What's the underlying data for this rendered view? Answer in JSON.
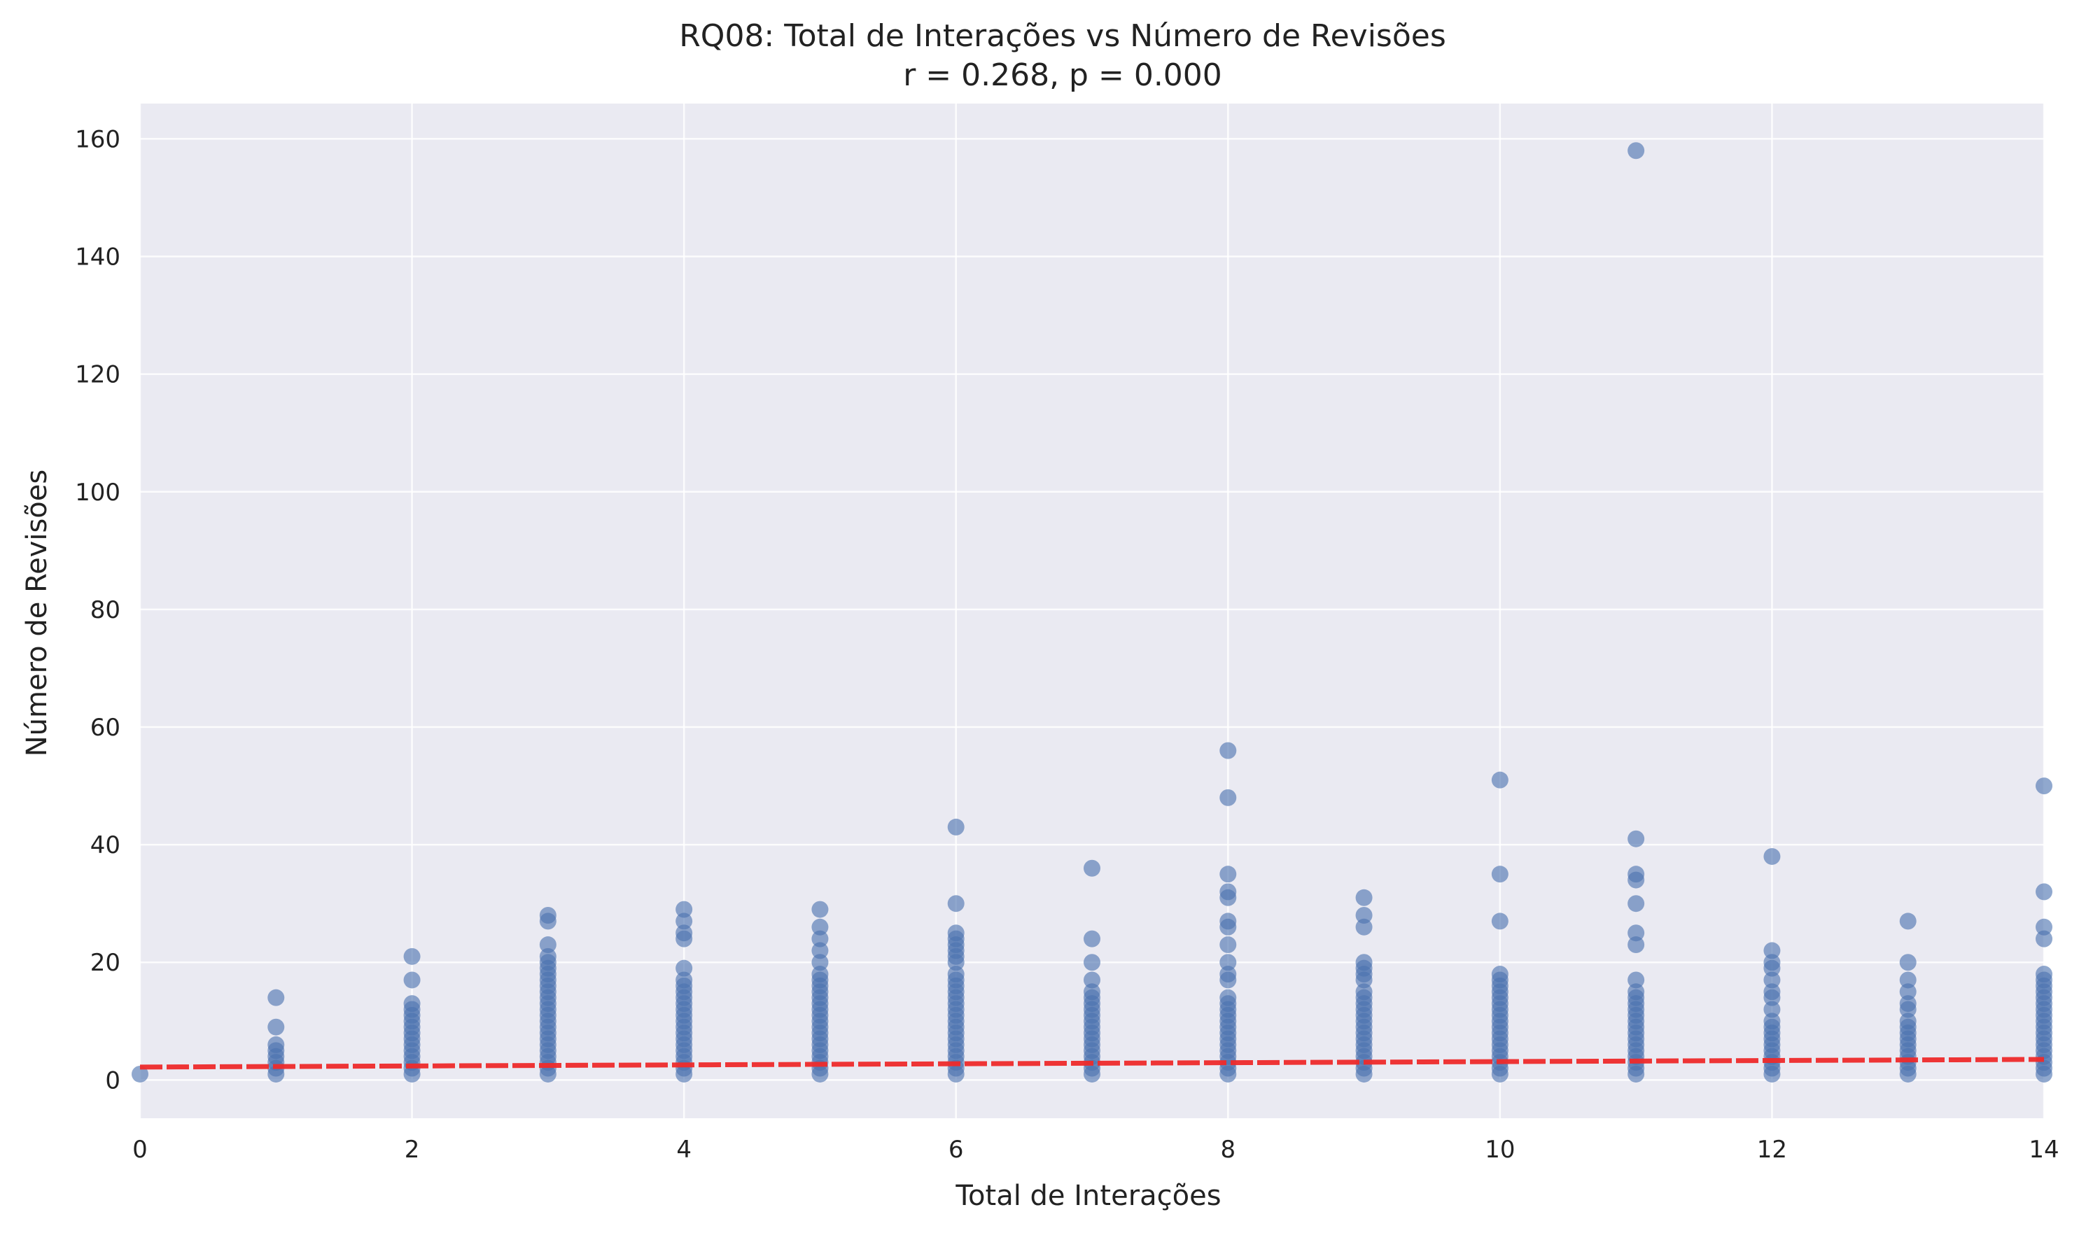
{
  "chart_data": {
    "type": "scatter",
    "title": "RQ08: Total de Interações vs Número de Revisões",
    "subtitle": "r = 0.268, p = 0.000",
    "xlabel": "Total de Interações",
    "ylabel": "Número de Revisões",
    "xlim": [
      0,
      14
    ],
    "ylim": [
      -6.5,
      166
    ],
    "x_ticks": [
      0,
      2,
      4,
      6,
      8,
      10,
      12,
      14
    ],
    "y_ticks": [
      0,
      20,
      40,
      60,
      80,
      100,
      120,
      140,
      160
    ],
    "grid": true,
    "legend": "none",
    "colors": {
      "background": "#eaeaf2",
      "grid": "#ffffff",
      "points": "#4c72b0",
      "trend": "#ee2a2a"
    },
    "trend_line": {
      "style": "dashed",
      "x": [
        0,
        14
      ],
      "y": [
        2.2,
        3.5
      ]
    },
    "series": [
      {
        "groups": [
          {
            "x": 0,
            "y": [
              1
            ]
          },
          {
            "x": 1,
            "y": [
              1,
              2,
              3,
              4,
              5,
              6,
              9,
              14
            ]
          },
          {
            "x": 2,
            "y": [
              1,
              2,
              3,
              4,
              5,
              6,
              7,
              8,
              9,
              10,
              11,
              12,
              13,
              17,
              21
            ]
          },
          {
            "x": 3,
            "y": [
              1,
              2,
              3,
              4,
              5,
              6,
              7,
              8,
              9,
              10,
              11,
              12,
              13,
              14,
              15,
              16,
              17,
              18,
              19,
              20,
              21,
              23,
              27,
              28
            ]
          },
          {
            "x": 4,
            "y": [
              1,
              2,
              3,
              4,
              5,
              6,
              7,
              8,
              9,
              10,
              11,
              12,
              13,
              14,
              15,
              16,
              17,
              19,
              24,
              25,
              27,
              29
            ]
          },
          {
            "x": 5,
            "y": [
              1,
              2,
              3,
              4,
              5,
              6,
              7,
              8,
              9,
              10,
              11,
              12,
              13,
              14,
              15,
              16,
              17,
              18,
              20,
              22,
              24,
              26,
              29
            ]
          },
          {
            "x": 6,
            "y": [
              1,
              2,
              3,
              4,
              5,
              6,
              7,
              8,
              9,
              10,
              11,
              12,
              13,
              14,
              15,
              16,
              17,
              18,
              20,
              21,
              22,
              23,
              24,
              25,
              30,
              43
            ]
          },
          {
            "x": 7,
            "y": [
              1,
              2,
              3,
              4,
              5,
              6,
              7,
              8,
              9,
              10,
              11,
              12,
              13,
              14,
              15,
              17,
              20,
              24,
              36
            ]
          },
          {
            "x": 8,
            "y": [
              1,
              2,
              3,
              4,
              5,
              6,
              7,
              8,
              9,
              10,
              11,
              12,
              13,
              14,
              17,
              18,
              20,
              23,
              26,
              27,
              31,
              32,
              35,
              48,
              56
            ]
          },
          {
            "x": 9,
            "y": [
              1,
              2,
              3,
              4,
              5,
              6,
              7,
              8,
              9,
              10,
              11,
              12,
              13,
              14,
              15,
              17,
              18,
              19,
              20,
              26,
              28,
              31
            ]
          },
          {
            "x": 10,
            "y": [
              1,
              2,
              3,
              4,
              5,
              6,
              7,
              8,
              9,
              10,
              11,
              12,
              13,
              14,
              15,
              16,
              17,
              18,
              27,
              35,
              51
            ]
          },
          {
            "x": 11,
            "y": [
              1,
              2,
              3,
              4,
              5,
              6,
              7,
              8,
              9,
              10,
              11,
              12,
              13,
              14,
              15,
              17,
              23,
              25,
              30,
              34,
              35,
              41,
              158
            ]
          },
          {
            "x": 12,
            "y": [
              1,
              2,
              3,
              4,
              5,
              6,
              7,
              8,
              9,
              10,
              12,
              14,
              15,
              17,
              19,
              20,
              22,
              38
            ]
          },
          {
            "x": 13,
            "y": [
              1,
              2,
              3,
              4,
              5,
              6,
              7,
              8,
              9,
              10,
              12,
              13,
              15,
              17,
              20,
              27
            ]
          },
          {
            "x": 14,
            "y": [
              1,
              2,
              3,
              4,
              5,
              6,
              7,
              8,
              9,
              10,
              11,
              12,
              13,
              14,
              15,
              16,
              17,
              18,
              24,
              26,
              32,
              50
            ]
          }
        ]
      }
    ]
  }
}
